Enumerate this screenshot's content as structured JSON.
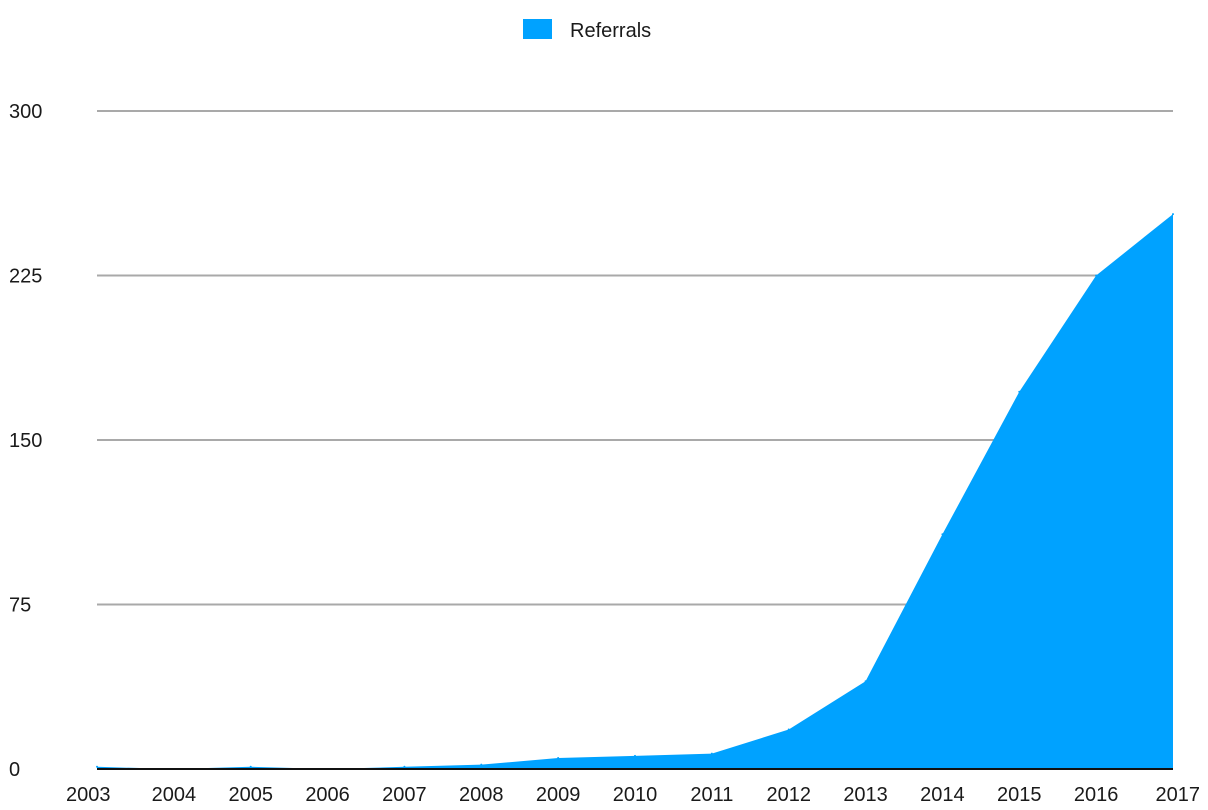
{
  "chart_data": {
    "type": "area",
    "title": "",
    "xlabel": "",
    "ylabel": "",
    "categories": [
      "2003",
      "2004",
      "2005",
      "2006",
      "2007",
      "2008",
      "2009",
      "2010",
      "2011",
      "2012",
      "2013",
      "2014",
      "2015",
      "2016",
      "2017"
    ],
    "series": [
      {
        "name": "Referrals",
        "color": "#00a2ff",
        "values": [
          1,
          0,
          1,
          0,
          1,
          2,
          5,
          6,
          7,
          18,
          40,
          107,
          172,
          225,
          253
        ]
      }
    ],
    "ylim": [
      0,
      300
    ],
    "yticks": [
      0,
      75,
      150,
      225,
      300
    ],
    "grid": true,
    "legend_position": "top-center"
  }
}
